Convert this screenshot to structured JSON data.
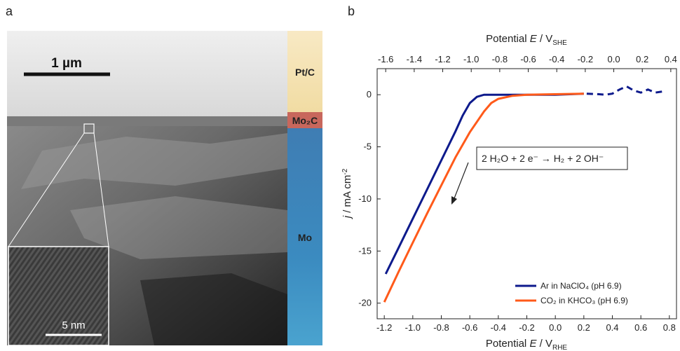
{
  "panel_a": {
    "label": "a",
    "scale_bar": "1 µm",
    "inset_scale_bar": "5 nm",
    "layers": [
      "Pt/C",
      "Mo₂C",
      "Mo"
    ]
  },
  "chart_data": {
    "type": "line",
    "panel_label": "b",
    "xlabel": [
      "Potential ",
      "E",
      " / V",
      "RHE"
    ],
    "x2label": [
      "Potential ",
      "E",
      " / V",
      "SHE"
    ],
    "ylabel": [
      "j",
      " / mA cm",
      "-2"
    ],
    "annotation": "2 H₂O + 2 e⁻ → H₂ + 2 OH⁻",
    "xlim": [
      -1.25,
      0.85
    ],
    "xticks": [
      -1.2,
      {
        "value": -1,
        "label": "-1.0"
      },
      -0.8,
      -0.6,
      -0.4,
      -0.2,
      {
        "value": 0,
        "label": "0.0"
      },
      0.2,
      0.4,
      0.6,
      0.8
    ],
    "x2lim": [
      -1.66,
      0.44
    ],
    "x2ticks": [
      -1.6,
      -1.4,
      -1.2,
      {
        "value": -1,
        "label": "-1.0"
      },
      -0.8,
      -0.6,
      -0.4,
      -0.2,
      {
        "value": 0,
        "label": "0.0"
      },
      0.2,
      0.4
    ],
    "ylim": [
      -21.5,
      2.5
    ],
    "yticks": [
      0,
      -5,
      -10,
      -15,
      -20
    ],
    "grid": false,
    "legend": "lower right",
    "series": [
      {
        "name": "Ar in NaClO₄ (pH 6.9)",
        "color": "#0d1a8c",
        "x": [
          -1.19,
          -1.1,
          -1.0,
          -0.9,
          -0.8,
          -0.7,
          -0.65,
          -0.6,
          -0.55,
          -0.5,
          -0.4,
          0.0,
          0.2
        ],
        "values": [
          -17.2,
          -14.7,
          -11.9,
          -9.1,
          -6.3,
          -3.5,
          -2.0,
          -0.8,
          -0.2,
          0,
          0,
          0,
          0.1
        ]
      },
      {
        "name": "CO₂ in KHCO₃ (pH 6.9)",
        "color": "#ff5a1a",
        "x": [
          -1.2,
          -1.1,
          -1.0,
          -0.9,
          -0.8,
          -0.7,
          -0.6,
          -0.5,
          -0.45,
          -0.4,
          -0.3,
          -0.2,
          0.2
        ],
        "values": [
          -19.9,
          -17.0,
          -14.2,
          -11.4,
          -8.7,
          -6.0,
          -3.6,
          -1.6,
          -0.8,
          -0.4,
          -0.1,
          0,
          0.1
        ]
      },
      {
        "color": "#0d1a8c",
        "dashed": true,
        "x": [
          0.22,
          0.3,
          0.35,
          0.4,
          0.45,
          0.5,
          0.55,
          0.6,
          0.65,
          0.7,
          0.75
        ],
        "values": [
          0.1,
          0.05,
          0,
          0.1,
          0.5,
          0.8,
          0.4,
          0.2,
          0.5,
          0.2,
          0.3
        ]
      }
    ]
  }
}
